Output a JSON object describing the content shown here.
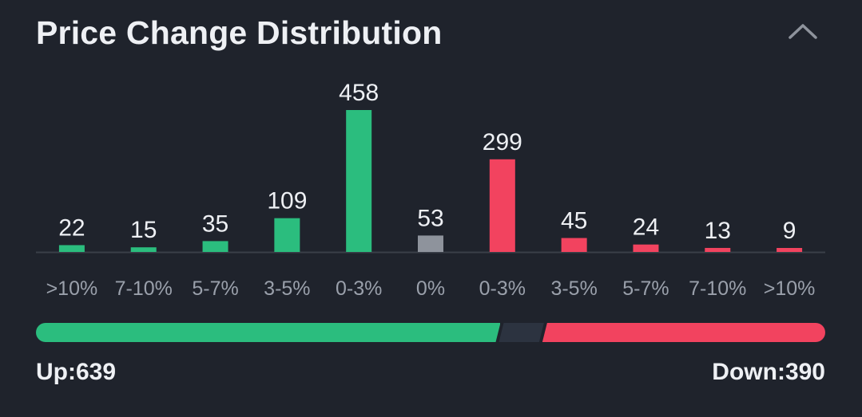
{
  "header": {
    "title": "Price Change Distribution",
    "collapse_icon": "chevron-up-icon"
  },
  "colors": {
    "up": "#2bbd7e",
    "flat": "#8e939c",
    "down": "#f2435f",
    "background": "#1f232c",
    "baseline": "#3a3f49",
    "neutral_track": "#2c3340"
  },
  "chart_data": {
    "type": "bar",
    "categories": [
      ">10%",
      "7-10%",
      "5-7%",
      "3-5%",
      "0-3%",
      "0%",
      "0-3%",
      "3-5%",
      "5-7%",
      "7-10%",
      ">10%"
    ],
    "values": [
      22,
      15,
      35,
      109,
      458,
      53,
      299,
      45,
      24,
      13,
      9
    ],
    "bar_groups": [
      "up",
      "up",
      "up",
      "up",
      "up",
      "flat",
      "down",
      "down",
      "down",
      "down",
      "down"
    ],
    "data_labels": true,
    "grid": false,
    "ylim": [
      0,
      458
    ]
  },
  "summary": {
    "up_label": "Up:639",
    "down_label": "Down:390",
    "up_count": 639,
    "flat_count": 53,
    "down_count": 390
  }
}
